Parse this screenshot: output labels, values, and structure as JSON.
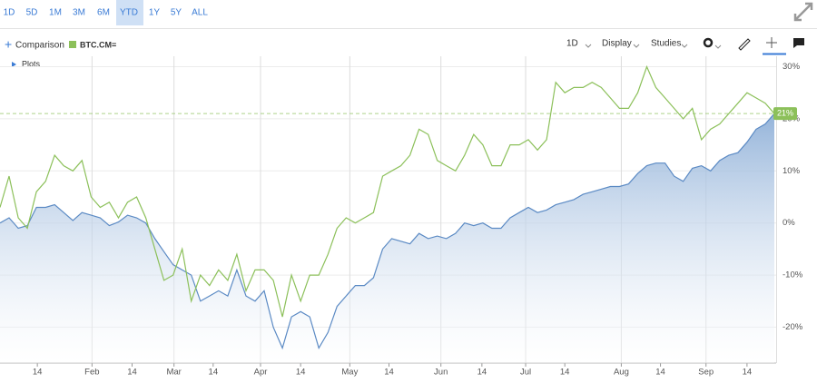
{
  "toolbar": {
    "ranges": [
      "1D",
      "5D",
      "1M",
      "3M",
      "6M",
      "YTD",
      "1Y",
      "5Y",
      "ALL"
    ],
    "selected_range": "YTD",
    "comparison": "Comparison",
    "interval": "1D",
    "display": "Display",
    "studies": "Studies",
    "plots": "Plots"
  },
  "chart_data": {
    "type": "area",
    "xlim": [
      0,
      85
    ],
    "xticks": [
      {
        "value": 4.1,
        "label": "14"
      },
      {
        "value": 10.1,
        "label": "Feb"
      },
      {
        "value": 14.5,
        "label": "14"
      },
      {
        "value": 19.1,
        "label": "Mar"
      },
      {
        "value": 23.4,
        "label": "14"
      },
      {
        "value": 28.6,
        "label": "Apr"
      },
      {
        "value": 33,
        "label": "14"
      },
      {
        "value": 38.4,
        "label": "May"
      },
      {
        "value": 42.7,
        "label": "14"
      },
      {
        "value": 48.4,
        "label": "Jun"
      },
      {
        "value": 52.9,
        "label": "14"
      },
      {
        "value": 57.7,
        "label": "Jul"
      },
      {
        "value": 62,
        "label": "14"
      },
      {
        "value": 68.2,
        "label": "Aug"
      },
      {
        "value": 72.5,
        "label": "14"
      },
      {
        "value": 77.5,
        "label": "Sep"
      },
      {
        "value": 82,
        "label": "14"
      }
    ],
    "ylim": [
      -26,
      32
    ],
    "yticks": [
      {
        "value": 30,
        "label": "30%"
      },
      {
        "value": 20,
        "label": "20%"
      },
      {
        "value": 10,
        "label": "10%"
      },
      {
        "value": 0,
        "label": "0%"
      },
      {
        "value": -10,
        "label": "-10%"
      },
      {
        "value": -20,
        "label": "-20%"
      }
    ],
    "grid": true,
    "series": [
      {
        "color": "#5b8ac4",
        "values": [
          0,
          1,
          -1,
          -0.5,
          3,
          3,
          3.5,
          2,
          0.5,
          2,
          1.5,
          1,
          -0.5,
          0.2,
          1.5,
          1,
          0,
          -3,
          -5.5,
          -8,
          -9,
          -10,
          -15,
          -14,
          -13,
          -14,
          -9,
          -14,
          -15,
          -13,
          -20,
          -24,
          -18,
          -17,
          -18,
          -24,
          -21,
          -16,
          -14,
          -12,
          -12,
          -10.5,
          -5,
          -3,
          -3.5,
          -4,
          -2,
          -3,
          -2.5,
          -3,
          -2,
          0,
          -0.5,
          0,
          -1,
          -1,
          1,
          2,
          3,
          2,
          2.5,
          3.5,
          4,
          4.5,
          5.5,
          6,
          6.5,
          7,
          7,
          7.5,
          9.5,
          11,
          11.5,
          11.5,
          9,
          8,
          10.5,
          11,
          10,
          12,
          13,
          13.5,
          15.5,
          18,
          19,
          21
        ]
      },
      {
        "name": "BTC.CM=",
        "color": "#8cc05a",
        "values": [
          3,
          9,
          1,
          -1,
          6,
          8,
          13,
          11,
          10,
          12,
          5,
          3,
          4,
          1,
          4,
          5,
          1,
          -5,
          -11,
          -10,
          -5,
          -15,
          -10,
          -12,
          -9,
          -11,
          -6,
          -13,
          -9,
          -9,
          -11,
          -18,
          -10,
          -15,
          -10,
          -10,
          -6,
          -1,
          1,
          0,
          1,
          2,
          9,
          10,
          11,
          13,
          18,
          17,
          12,
          11,
          10,
          13,
          17,
          15,
          11,
          11,
          15,
          15,
          16,
          14,
          16,
          27,
          25,
          26,
          26,
          27,
          26,
          24,
          22,
          22,
          25,
          30,
          26,
          24,
          22,
          20,
          22,
          16,
          18,
          19,
          21,
          23,
          25,
          24,
          23,
          21
        ],
        "end_label": {
          "value": 21,
          "label": "21%"
        }
      }
    ]
  }
}
